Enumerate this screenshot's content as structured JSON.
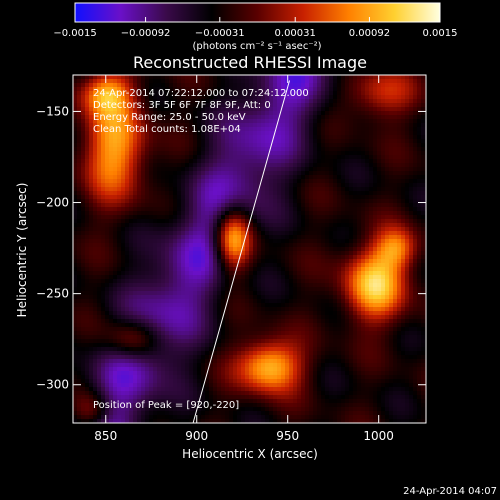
{
  "chart_data": {
    "type": "heatmap",
    "title": "Reconstructed RHESSI Image",
    "xlabel": "Heliocentric X (arcsec)",
    "ylabel": "Heliocentric Y (arcsec)",
    "xlim": [
      832,
      1026
    ],
    "ylim": [
      -321,
      -130
    ],
    "x_ticks": [
      850,
      900,
      950,
      1000
    ],
    "y_ticks": [
      -300,
      -250,
      -200,
      -150
    ],
    "colorbar": {
      "units": "(photons cm⁻² s⁻¹ asec⁻²)",
      "range": [
        -0.0015,
        0.0015
      ],
      "tick_values": [
        -0.0015,
        -0.00092,
        -0.00031,
        0.00031,
        0.00092,
        0.0015
      ],
      "tick_labels": [
        "−0.0015",
        "−0.00092",
        "−0.00031",
        "0.00031",
        "0.00092",
        "0.0015"
      ],
      "colors": [
        "#1010ff",
        "#6a10c8",
        "#3a0a4a",
        "#000000",
        "#5a0000",
        "#c82000",
        "#ff8000",
        "#ffd030",
        "#ffffe0"
      ]
    },
    "sources": [
      {
        "x": 920,
        "y": -220,
        "peak": 0.0015,
        "sigma_x": 7,
        "sigma_y": 12
      },
      {
        "x": 855,
        "y": -170,
        "peak": 0.0012,
        "sigma_x": 12,
        "sigma_y": 20
      },
      {
        "x": 850,
        "y": -140,
        "peak": 0.001,
        "sigma_x": 10,
        "sigma_y": 8
      },
      {
        "x": 998,
        "y": -245,
        "peak": 0.0014,
        "sigma_x": 12,
        "sigma_y": 14
      },
      {
        "x": 1010,
        "y": -225,
        "peak": 0.0009,
        "sigma_x": 8,
        "sigma_y": 8
      },
      {
        "x": 940,
        "y": -290,
        "peak": 0.0014,
        "sigma_x": 12,
        "sigma_y": 10
      },
      {
        "x": 865,
        "y": -275,
        "peak": 0.0008,
        "sigma_x": 10,
        "sigma_y": 8
      },
      {
        "x": 1000,
        "y": -140,
        "peak": 0.0007,
        "sigma_x": 14,
        "sigma_y": 10
      },
      {
        "x": 842,
        "y": -315,
        "peak": 0.0008,
        "sigma_x": 8,
        "sigma_y": 8
      }
    ],
    "limb_line": [
      [
        898,
        -321
      ],
      [
        951,
        -133
      ]
    ],
    "info_lines": [
      "24-Apr-2014 07:22:12.000 to 07:24:12.000",
      "Detectors: 3F 5F 6F 7F 8F 9F, Att: 0",
      "Energy Range: 25.0 - 50.0 keV",
      "Clean     Total counts: 1.08E+04"
    ],
    "peak_text": "Position of Peak = [920,-220]",
    "timestamp": "24-Apr-2014 04:07"
  }
}
